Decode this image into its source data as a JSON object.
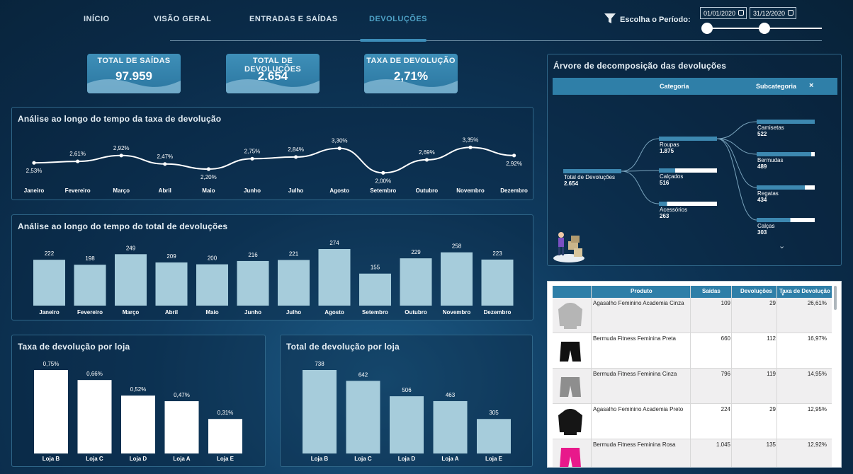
{
  "nav": {
    "tabs": [
      "INÍCIO",
      "VISÃO GERAL",
      "ENTRADAS E SAÍDAS",
      "DEVOLUÇÕES"
    ],
    "active": "DEVOLUÇÕES",
    "period_label": "Escolha o Período:",
    "date_start": "01/01/2020",
    "date_end": "31/12/2020",
    "slider_start": 0.0,
    "slider_end": 0.5
  },
  "kpis": [
    {
      "title": "TOTAL DE SAÍDAS",
      "value": "97.959"
    },
    {
      "title": "TOTAL DE DEVOLUÇÕES",
      "value": "2.654"
    },
    {
      "title": "TAXA DE DEVOLUÇÃO",
      "value": "2,71%"
    }
  ],
  "chart_data": [
    {
      "type": "line",
      "title": "Análise ao longo do tempo da taxa de devolução",
      "categories": [
        "Janeiro",
        "Fevereiro",
        "Março",
        "Abril",
        "Maio",
        "Junho",
        "Julho",
        "Agosto",
        "Setembro",
        "Outubro",
        "Novembro",
        "Dezembro"
      ],
      "values": [
        2.53,
        2.61,
        2.92,
        2.47,
        2.2,
        2.75,
        2.84,
        3.3,
        2.0,
        2.69,
        3.35,
        2.92
      ],
      "labels": [
        "2,53%",
        "2,61%",
        "2,92%",
        "2,47%",
        "2,20%",
        "2,75%",
        "2,84%",
        "3,30%",
        "2,00%",
        "2,69%",
        "3,35%",
        "2,92%"
      ]
    },
    {
      "type": "bar",
      "title": "Análise ao longo do tempo do total de devoluções",
      "categories": [
        "Janeiro",
        "Fevereiro",
        "Março",
        "Abril",
        "Maio",
        "Junho",
        "Julho",
        "Agosto",
        "Setembro",
        "Outubro",
        "Novembro",
        "Dezembro"
      ],
      "values": [
        222,
        198,
        249,
        209,
        200,
        216,
        221,
        274,
        155,
        229,
        258,
        223
      ]
    },
    {
      "type": "bar",
      "title": "Taxa de devolução por loja",
      "categories": [
        "Loja B",
        "Loja C",
        "Loja D",
        "Loja A",
        "Loja E"
      ],
      "values": [
        0.75,
        0.66,
        0.52,
        0.47,
        0.31
      ],
      "labels": [
        "0,75%",
        "0,66%",
        "0,52%",
        "0,47%",
        "0,31%"
      ]
    },
    {
      "type": "bar",
      "title": "Total de devolução por loja",
      "categories": [
        "Loja B",
        "Loja C",
        "Loja D",
        "Loja A",
        "Loja E"
      ],
      "values": [
        738,
        642,
        506,
        463,
        305
      ]
    }
  ],
  "tree": {
    "title": "Árvore de decomposição das devoluções",
    "col1": "Categoria",
    "col2": "Subcategoria",
    "root": {
      "label": "Total de Devoluções",
      "value": "2.654"
    },
    "categories": [
      {
        "label": "Roupas",
        "value": "1.875",
        "fraction": 1.0
      },
      {
        "label": "Calçados",
        "value": "516",
        "fraction": 0.28
      },
      {
        "label": "Acessórios",
        "value": "263",
        "fraction": 0.14
      }
    ],
    "subcategories": [
      {
        "label": "Camisetas",
        "value": "522",
        "fraction": 1.0
      },
      {
        "label": "Bermudas",
        "value": "489",
        "fraction": 0.94
      },
      {
        "label": "Regatas",
        "value": "434",
        "fraction": 0.83
      },
      {
        "label": "Calças",
        "value": "303",
        "fraction": 0.58
      }
    ]
  },
  "table": {
    "headers": [
      "Produto",
      "Saídas",
      "Devoluções",
      "Taxa de Devolução"
    ],
    "rows": [
      {
        "produto": "Agasalho Feminino Academia Cinza",
        "saidas": "109",
        "devolucoes": "29",
        "taxa": "26,61%",
        "icon": "gray-hoodie",
        "color": "#b5b5b5"
      },
      {
        "produto": "Bermuda Fitness Feminina Preta",
        "saidas": "660",
        "devolucoes": "112",
        "taxa": "16,97%",
        "icon": "black-shorts",
        "color": "#111111"
      },
      {
        "produto": "Bermuda Fitness Feminina Cinza",
        "saidas": "796",
        "devolucoes": "119",
        "taxa": "14,95%",
        "icon": "gray-shorts",
        "color": "#8e8e8e"
      },
      {
        "produto": "Agasalho Feminino Academia Preto",
        "saidas": "224",
        "devolucoes": "29",
        "taxa": "12,95%",
        "icon": "black-hoodie",
        "color": "#151515"
      },
      {
        "produto": "Bermuda Fitness Feminina Rosa",
        "saidas": "1.045",
        "devolucoes": "135",
        "taxa": "12,92%",
        "icon": "pink-shorts",
        "color": "#e8198b"
      }
    ]
  }
}
